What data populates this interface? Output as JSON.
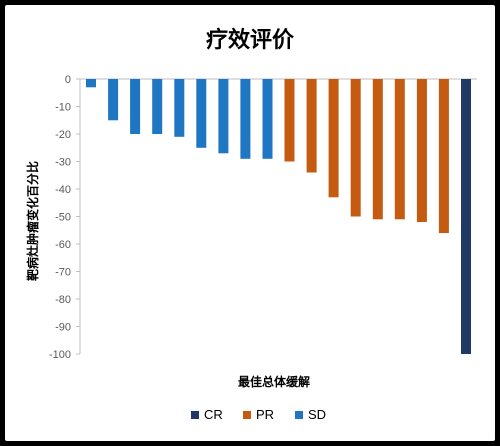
{
  "chart_data": {
    "type": "bar",
    "title": "疗效评价",
    "xlabel": "最佳总体缓解",
    "ylabel": "靶病灶肿瘤变化百分比",
    "ylim": [
      -100,
      0
    ],
    "yticks": [
      0,
      -10,
      -20,
      -30,
      -40,
      -50,
      -60,
      -70,
      -80,
      -90,
      -100
    ],
    "grid": false,
    "legend_position": "bottom",
    "colors": {
      "CR": "#203864",
      "PR": "#C55A11",
      "SD": "#1F77C4"
    },
    "legend": [
      "CR",
      "PR",
      "SD"
    ],
    "values": [
      -3,
      -15,
      -20,
      -20,
      -21,
      -25,
      -27,
      -29,
      -29,
      -30,
      -34,
      -43,
      -50,
      -51,
      -51,
      -52,
      -56,
      -100
    ],
    "groups": [
      "SD",
      "SD",
      "SD",
      "SD",
      "SD",
      "SD",
      "SD",
      "SD",
      "SD",
      "PR",
      "PR",
      "PR",
      "PR",
      "PR",
      "PR",
      "PR",
      "PR",
      "CR"
    ]
  }
}
